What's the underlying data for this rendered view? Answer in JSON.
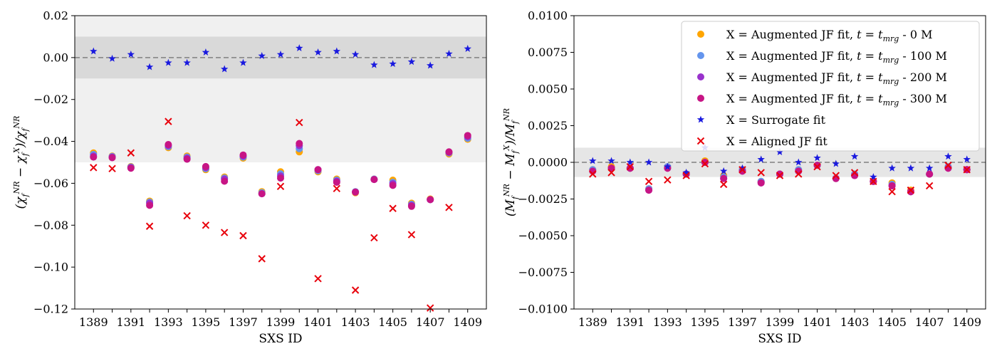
{
  "chart_data": [
    {
      "type": "scatter",
      "xlabel": "SXS ID",
      "ylabel": "(χ_f^NR − χ_f^X)/χ_f^NR",
      "ylim": [
        -0.12,
        0.02
      ],
      "yticks": [
        0.02,
        0.0,
        -0.02,
        -0.04,
        -0.06,
        -0.08,
        -0.1,
        -0.12
      ],
      "ytick_labels": [
        "0.02",
        "0.00",
        "−0.02",
        "−0.04",
        "−0.06",
        "−0.08",
        "−0.10",
        "−0.12"
      ],
      "x": [
        1389,
        1390,
        1391,
        1392,
        1393,
        1394,
        1395,
        1396,
        1397,
        1398,
        1399,
        1400,
        1401,
        1402,
        1403,
        1404,
        1405,
        1406,
        1407,
        1408,
        1409
      ],
      "xticks": [
        1389,
        1391,
        1393,
        1395,
        1397,
        1399,
        1401,
        1403,
        1405,
        1407,
        1409
      ],
      "xtick_labels": [
        "1389",
        "1391",
        "1393",
        "1395",
        "1397",
        "1399",
        "1401",
        "1403",
        "1405",
        "1407",
        "1409"
      ],
      "bands": [
        {
          "y0": -0.05,
          "y1": 0.02,
          "color": "#f0f0f0"
        },
        {
          "y0": -0.01,
          "y1": 0.01,
          "color": "#d9d9d9"
        }
      ],
      "reference_line": 0.0,
      "series": [
        {
          "name": "t_mrg - 0 M",
          "marker": "circle",
          "color": "#ffa500",
          "values": [
            -0.0455,
            -0.047,
            -0.052,
            -0.0685,
            -0.043,
            -0.047,
            -0.0535,
            -0.057,
            -0.048,
            -0.064,
            -0.0545,
            -0.045,
            -0.0545,
            -0.058,
            -0.0645,
            -0.058,
            -0.0585,
            -0.0695,
            -0.0675,
            -0.046,
            -0.039
          ]
        },
        {
          "name": "t_mrg - 100 M",
          "marker": "circle",
          "color": "#6495ed",
          "values": [
            -0.0462,
            -0.0472,
            -0.0522,
            -0.069,
            -0.0425,
            -0.0475,
            -0.053,
            -0.0575,
            -0.0475,
            -0.0645,
            -0.0555,
            -0.0435,
            -0.054,
            -0.0585,
            -0.064,
            -0.058,
            -0.0595,
            -0.07,
            -0.0678,
            -0.0455,
            -0.0385
          ]
        },
        {
          "name": "t_mrg - 200 M",
          "marker": "circle",
          "color": "#9932cc",
          "values": [
            -0.047,
            -0.0475,
            -0.0525,
            -0.0695,
            -0.042,
            -0.048,
            -0.0525,
            -0.058,
            -0.047,
            -0.065,
            -0.0565,
            -0.042,
            -0.0535,
            -0.059,
            -0.0642,
            -0.0582,
            -0.0602,
            -0.0705,
            -0.0678,
            -0.0452,
            -0.0378
          ]
        },
        {
          "name": "t_mrg - 300 M",
          "marker": "circle",
          "color": "#c71585",
          "values": [
            -0.0475,
            -0.0478,
            -0.0528,
            -0.0705,
            -0.0415,
            -0.0485,
            -0.052,
            -0.059,
            -0.0465,
            -0.065,
            -0.0575,
            -0.041,
            -0.0535,
            -0.0595,
            -0.0642,
            -0.0582,
            -0.061,
            -0.071,
            -0.0678,
            -0.045,
            -0.0372
          ]
        },
        {
          "name": "Surrogate fit",
          "marker": "star",
          "color": "#1a1adf",
          "values": [
            0.003,
            -0.0005,
            0.0015,
            -0.0045,
            -0.0025,
            -0.0025,
            0.0025,
            -0.0055,
            -0.0025,
            0.0008,
            0.0015,
            0.0045,
            0.0025,
            0.003,
            0.0015,
            -0.0035,
            -0.003,
            -0.002,
            -0.0038,
            0.0018,
            0.0042
          ]
        },
        {
          "name": "Aligned JF fit",
          "marker": "x",
          "color": "#e8000b",
          "values": [
            -0.0525,
            -0.053,
            -0.0455,
            -0.0805,
            -0.0305,
            -0.0755,
            -0.08,
            -0.0835,
            -0.085,
            -0.096,
            -0.0615,
            -0.031,
            -0.1055,
            -0.0625,
            -0.111,
            -0.086,
            -0.072,
            -0.0845,
            -0.1195,
            -0.0715,
            null
          ]
        }
      ]
    },
    {
      "type": "scatter",
      "xlabel": "SXS ID",
      "ylabel": "(M_f^NR − M_f^X)/M_f^NR",
      "ylim": [
        -0.01,
        0.01
      ],
      "yticks": [
        0.01,
        0.0075,
        0.005,
        0.0025,
        0.0,
        -0.0025,
        -0.005,
        -0.0075,
        -0.01
      ],
      "ytick_labels": [
        "0.0100",
        "0.0075",
        "0.0050",
        "0.0025",
        "0.0000",
        "−0.0025",
        "−0.0050",
        "−0.0075",
        "−0.0100"
      ],
      "x": [
        1389,
        1390,
        1391,
        1392,
        1393,
        1394,
        1395,
        1396,
        1397,
        1398,
        1399,
        1400,
        1401,
        1402,
        1403,
        1404,
        1405,
        1406,
        1407,
        1408,
        1409
      ],
      "xticks": [
        1389,
        1391,
        1393,
        1395,
        1397,
        1399,
        1401,
        1403,
        1405,
        1407,
        1409
      ],
      "xtick_labels": [
        "1389",
        "1391",
        "1393",
        "1395",
        "1397",
        "1399",
        "1401",
        "1403",
        "1405",
        "1407",
        "1409"
      ],
      "bands": [
        {
          "y0": -0.001,
          "y1": 0.001,
          "color": "#e6e6e6"
        }
      ],
      "reference_line": 0.0,
      "legend": {
        "placement": "top-right",
        "entries": [
          {
            "prefix": "X = Augmented JF fit, ",
            "math": "t = t",
            "sub": "mrg",
            "suffix": " - 0 M",
            "marker": "circle",
            "color": "#ffa500"
          },
          {
            "prefix": "X = Augmented JF fit, ",
            "math": "t = t",
            "sub": "mrg",
            "suffix": " - 100 M",
            "marker": "circle",
            "color": "#6495ed"
          },
          {
            "prefix": "X = Augmented JF fit, ",
            "math": "t = t",
            "sub": "mrg",
            "suffix": " - 200 M",
            "marker": "circle",
            "color": "#9932cc"
          },
          {
            "prefix": "X = Augmented JF fit, ",
            "math": "t = t",
            "sub": "mrg",
            "suffix": " - 300 M",
            "marker": "circle",
            "color": "#c71585"
          },
          {
            "prefix": "X = Surrogate fit",
            "math": "",
            "sub": "",
            "suffix": "",
            "marker": "star",
            "color": "#1a1adf"
          },
          {
            "prefix": "X = Aligned JF fit",
            "math": "",
            "sub": "",
            "suffix": "",
            "marker": "x",
            "color": "#e8000b"
          }
        ]
      },
      "series": [
        {
          "name": "t_mrg - 0 M",
          "marker": "circle",
          "color": "#ffa500",
          "values": [
            -0.0005,
            -0.0003,
            -0.0004,
            -0.0018,
            -0.0003,
            -0.0008,
            0.0001,
            -0.0009,
            -0.0005,
            -0.0013,
            -0.0008,
            -0.0005,
            -0.0002,
            -0.0011,
            -0.0008,
            -0.0013,
            -0.0014,
            -0.0019,
            -0.0008,
            -0.0003,
            -0.0005
          ]
        },
        {
          "name": "t_mrg - 100 M",
          "marker": "circle",
          "color": "#6495ed",
          "values": [
            -0.0005,
            -0.0004,
            -0.0004,
            -0.0018,
            -0.0003,
            -0.0008,
            0.0,
            -0.001,
            -0.0005,
            -0.0013,
            -0.0008,
            -0.0005,
            -0.0002,
            -0.0011,
            -0.0008,
            -0.0013,
            -0.0015,
            -0.002,
            -0.0008,
            -0.0003,
            -0.0005
          ]
        },
        {
          "name": "t_mrg - 200 M",
          "marker": "circle",
          "color": "#9932cc",
          "values": [
            -0.0006,
            -0.0004,
            -0.0004,
            -0.0019,
            -0.0004,
            -0.0008,
            0.0,
            -0.0011,
            -0.0006,
            -0.0014,
            -0.0008,
            -0.0006,
            -0.0002,
            -0.0011,
            -0.0009,
            -0.0013,
            -0.0016,
            -0.002,
            -0.0008,
            -0.0004,
            -0.0005
          ]
        },
        {
          "name": "t_mrg - 300 M",
          "marker": "circle",
          "color": "#c71585",
          "values": [
            -0.0006,
            -0.0004,
            -0.0004,
            -0.0019,
            -0.0004,
            -0.0008,
            0.0,
            -0.0011,
            -0.0006,
            -0.0014,
            -0.0008,
            -0.0006,
            -0.0002,
            -0.0011,
            -0.0009,
            -0.0013,
            -0.0016,
            -0.002,
            -0.0008,
            -0.0004,
            -0.0005
          ]
        },
        {
          "name": "Surrogate fit",
          "marker": "star",
          "color": "#1a1adf",
          "values": [
            0.0001,
            0.0001,
            0.0,
            0.0,
            -0.0003,
            -0.0007,
            0.001,
            -0.0006,
            -0.0004,
            0.0002,
            0.0007,
            0.0,
            0.0003,
            -0.0001,
            0.0004,
            -0.001,
            -0.0004,
            -0.0004,
            -0.0004,
            0.0004,
            0.0002
          ]
        },
        {
          "name": "Aligned JF fit",
          "marker": "x",
          "color": "#e8000b",
          "values": [
            -0.0008,
            -0.0007,
            -0.0003,
            -0.0013,
            -0.0012,
            -0.0009,
            -0.0001,
            -0.0015,
            -0.0005,
            -0.0007,
            -0.0009,
            -0.0008,
            -0.0003,
            -0.0009,
            -0.0007,
            -0.0013,
            -0.002,
            -0.0019,
            -0.0016,
            -0.0002,
            -0.0005
          ]
        }
      ]
    }
  ]
}
